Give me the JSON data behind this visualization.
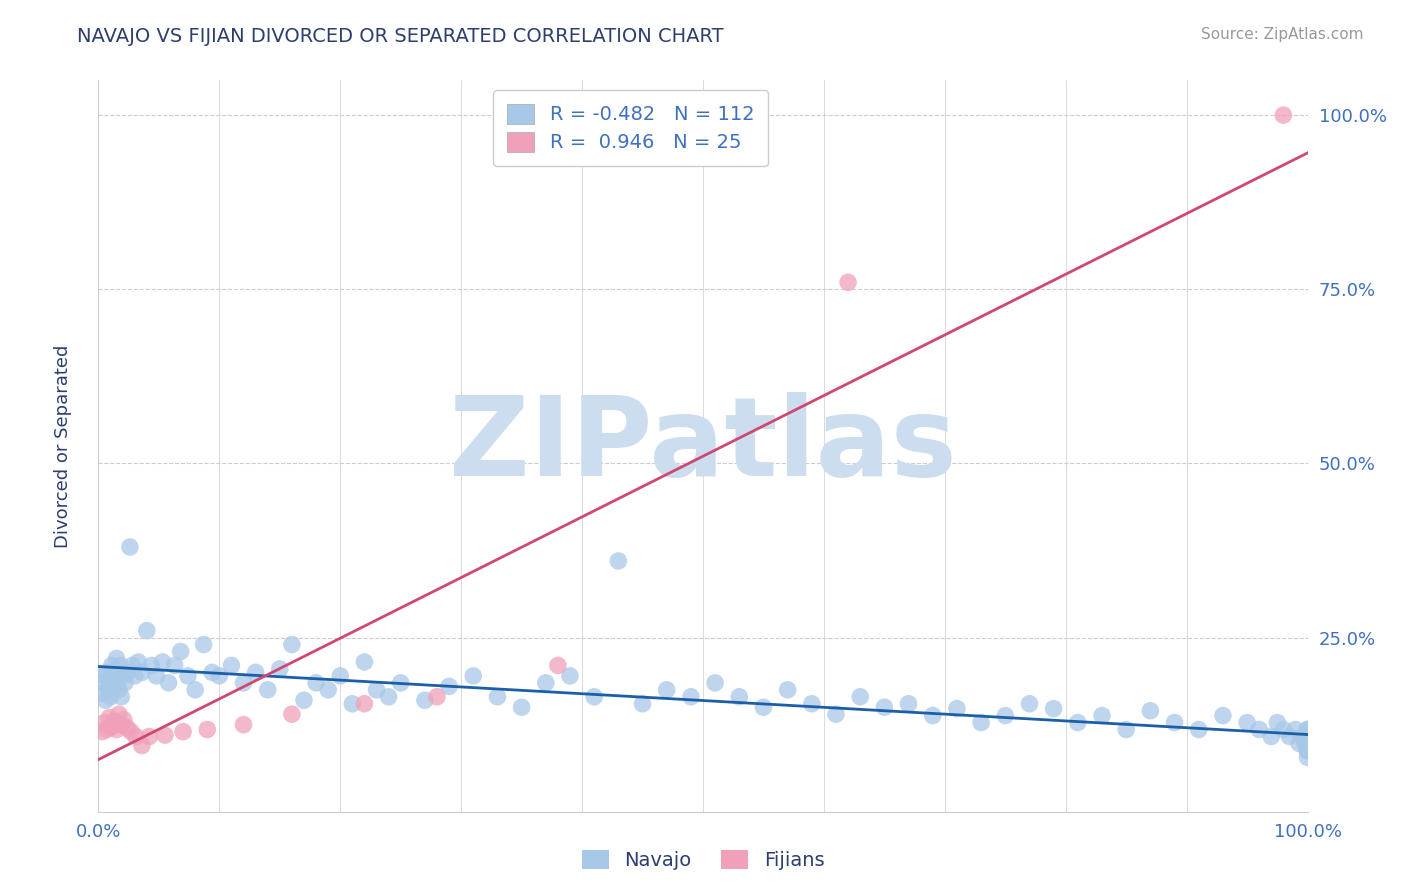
{
  "title": "NAVAJO VS FIJIAN DIVORCED OR SEPARATED CORRELATION CHART",
  "source_text": "Source: ZipAtlas.com",
  "ylabel": "Divorced or Separated",
  "navajo_R": -0.482,
  "navajo_N": 112,
  "fijian_R": 0.946,
  "fijian_N": 25,
  "navajo_color": "#a8c8e8",
  "navajo_line_color": "#1a5fa8",
  "fijian_color": "#f0a0b8",
  "fijian_line_color": "#d04870",
  "title_color": "#2c3e6e",
  "label_color": "#4070c0",
  "background_color": "#ffffff",
  "watermark_text": "ZIPatlas",
  "watermark_color": "#ccddf0",
  "grid_color": "#cccccc",
  "ytick_values": [
    0.0,
    0.25,
    0.5,
    0.75,
    1.0
  ],
  "ytick_labels": [
    "",
    "25.0%",
    "50.0%",
    "75.0%",
    "100.0%"
  ],
  "source_color": "#999999",
  "navajo_x": [
    0.003,
    0.004,
    0.005,
    0.006,
    0.007,
    0.008,
    0.009,
    0.01,
    0.011,
    0.012,
    0.013,
    0.014,
    0.015,
    0.016,
    0.017,
    0.018,
    0.019,
    0.02,
    0.022,
    0.024,
    0.026,
    0.028,
    0.03,
    0.033,
    0.036,
    0.04,
    0.044,
    0.048,
    0.053,
    0.058,
    0.063,
    0.068,
    0.074,
    0.08,
    0.087,
    0.094,
    0.1,
    0.11,
    0.12,
    0.13,
    0.14,
    0.15,
    0.16,
    0.17,
    0.18,
    0.19,
    0.2,
    0.21,
    0.22,
    0.23,
    0.24,
    0.25,
    0.27,
    0.29,
    0.31,
    0.33,
    0.35,
    0.37,
    0.39,
    0.41,
    0.43,
    0.45,
    0.47,
    0.49,
    0.51,
    0.53,
    0.55,
    0.57,
    0.59,
    0.61,
    0.63,
    0.65,
    0.67,
    0.69,
    0.71,
    0.73,
    0.75,
    0.77,
    0.79,
    0.81,
    0.83,
    0.85,
    0.87,
    0.89,
    0.91,
    0.93,
    0.95,
    0.96,
    0.97,
    0.975,
    0.98,
    0.985,
    0.99,
    0.993,
    0.996,
    0.998,
    1.0,
    1.0,
    1.0,
    1.0,
    1.0,
    1.0,
    1.0,
    1.0,
    1.0,
    1.0,
    1.0,
    1.0,
    1.0,
    1.0,
    1.0,
    1.0
  ],
  "navajo_y": [
    0.17,
    0.185,
    0.195,
    0.16,
    0.2,
    0.175,
    0.19,
    0.165,
    0.21,
    0.18,
    0.195,
    0.185,
    0.22,
    0.2,
    0.175,
    0.21,
    0.165,
    0.195,
    0.185,
    0.2,
    0.38,
    0.21,
    0.195,
    0.215,
    0.2,
    0.26,
    0.21,
    0.195,
    0.215,
    0.185,
    0.21,
    0.23,
    0.195,
    0.175,
    0.24,
    0.2,
    0.195,
    0.21,
    0.185,
    0.2,
    0.175,
    0.205,
    0.24,
    0.16,
    0.185,
    0.175,
    0.195,
    0.155,
    0.215,
    0.175,
    0.165,
    0.185,
    0.16,
    0.18,
    0.195,
    0.165,
    0.15,
    0.185,
    0.195,
    0.165,
    0.36,
    0.155,
    0.175,
    0.165,
    0.185,
    0.165,
    0.15,
    0.175,
    0.155,
    0.14,
    0.165,
    0.15,
    0.155,
    0.138,
    0.148,
    0.128,
    0.138,
    0.155,
    0.148,
    0.128,
    0.138,
    0.118,
    0.145,
    0.128,
    0.118,
    0.138,
    0.128,
    0.118,
    0.108,
    0.128,
    0.118,
    0.108,
    0.118,
    0.098,
    0.108,
    0.098,
    0.088,
    0.108,
    0.098,
    0.088,
    0.118,
    0.108,
    0.098,
    0.088,
    0.118,
    0.098,
    0.078,
    0.108,
    0.088,
    0.098,
    0.088,
    0.098
  ],
  "fijian_x": [
    0.003,
    0.005,
    0.007,
    0.009,
    0.011,
    0.013,
    0.015,
    0.017,
    0.019,
    0.021,
    0.024,
    0.027,
    0.031,
    0.036,
    0.042,
    0.055,
    0.07,
    0.09,
    0.12,
    0.16,
    0.22,
    0.28,
    0.38,
    0.62,
    0.98
  ],
  "fijian_y": [
    0.115,
    0.128,
    0.118,
    0.135,
    0.122,
    0.13,
    0.118,
    0.14,
    0.125,
    0.132,
    0.12,
    0.115,
    0.108,
    0.095,
    0.108,
    0.11,
    0.115,
    0.118,
    0.125,
    0.14,
    0.155,
    0.165,
    0.21,
    0.76,
    1.0
  ]
}
